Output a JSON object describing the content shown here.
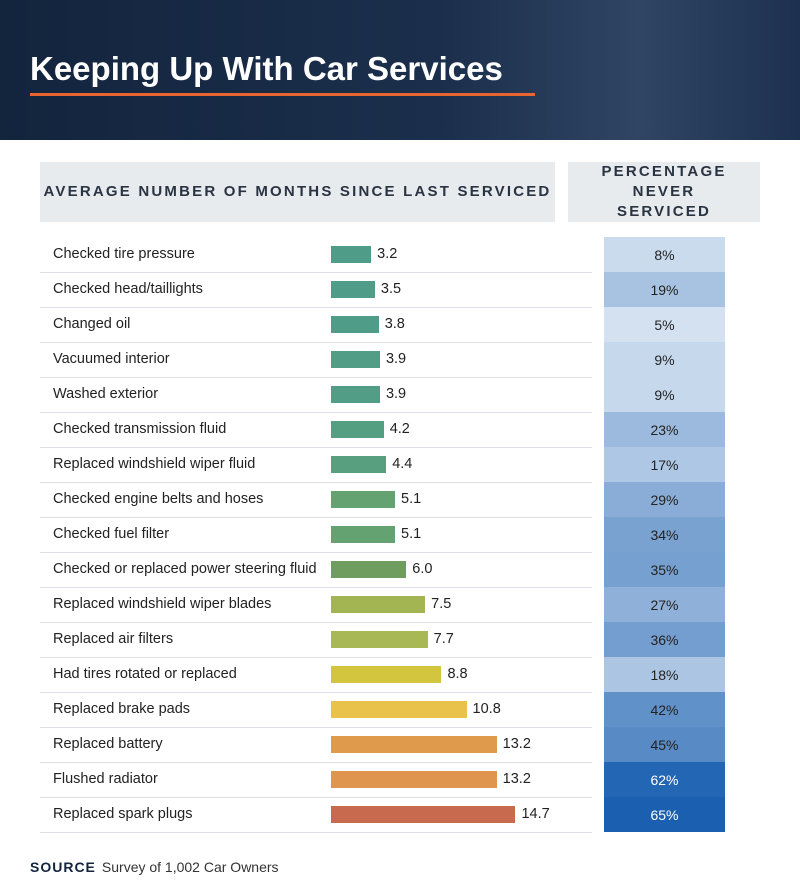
{
  "chart_data": {
    "type": "bar",
    "title": "Keeping Up With Car Services",
    "value_header": "AVERAGE NUMBER OF MONTHS SINCE LAST SERVICED",
    "categories": [
      "Checked tire pressure",
      "Checked head/taillights",
      "Changed oil",
      "Vacuumed interior",
      "Washed exterior",
      "Checked transmission fluid",
      "Replaced windshield wiper fluid",
      "Checked engine belts and hoses",
      "Checked fuel filter",
      "Checked or replaced power steering fluid",
      "Replaced windshield wiper blades",
      "Replaced air filters",
      "Had tires rotated or replaced",
      "Replaced brake pads",
      "Replaced battery",
      "Flushed radiator",
      "Replaced spark plugs"
    ],
    "values": [
      3.2,
      3.5,
      3.8,
      3.9,
      3.9,
      4.2,
      4.4,
      5.1,
      5.1,
      6.0,
      7.5,
      7.7,
      8.8,
      10.8,
      13.2,
      13.2,
      14.7
    ],
    "value_labels": [
      "3.2",
      "3.5",
      "3.8",
      "3.9",
      "3.9",
      "4.2",
      "4.4",
      "5.1",
      "5.1",
      "6.0",
      "7.5",
      "7.7",
      "8.8",
      "10.8",
      "13.2",
      "13.2",
      "14.7"
    ],
    "colors": [
      "#4f9c88",
      "#4f9c88",
      "#4f9c88",
      "#519d85",
      "#519d85",
      "#549e82",
      "#579f7f",
      "#65a272",
      "#65a272",
      "#6e9d5f",
      "#a3b553",
      "#a8b857",
      "#d4c53f",
      "#e8c24a",
      "#df9a4c",
      "#df954d",
      "#c86a4e"
    ],
    "never_serviced": {
      "title": "PERCENTAGE NEVER SERVICED",
      "values": [
        8,
        19,
        5,
        9,
        9,
        23,
        17,
        29,
        34,
        35,
        27,
        36,
        18,
        42,
        45,
        62,
        65
      ],
      "value_labels": [
        "8%",
        "19%",
        "5%",
        "9%",
        "9%",
        "23%",
        "17%",
        "29%",
        "34%",
        "35%",
        "27%",
        "36%",
        "18%",
        "42%",
        "45%",
        "62%",
        "65%"
      ]
    },
    "source": {
      "label": "SOURCE",
      "text": "Survey of 1,002 Car Owners"
    }
  }
}
